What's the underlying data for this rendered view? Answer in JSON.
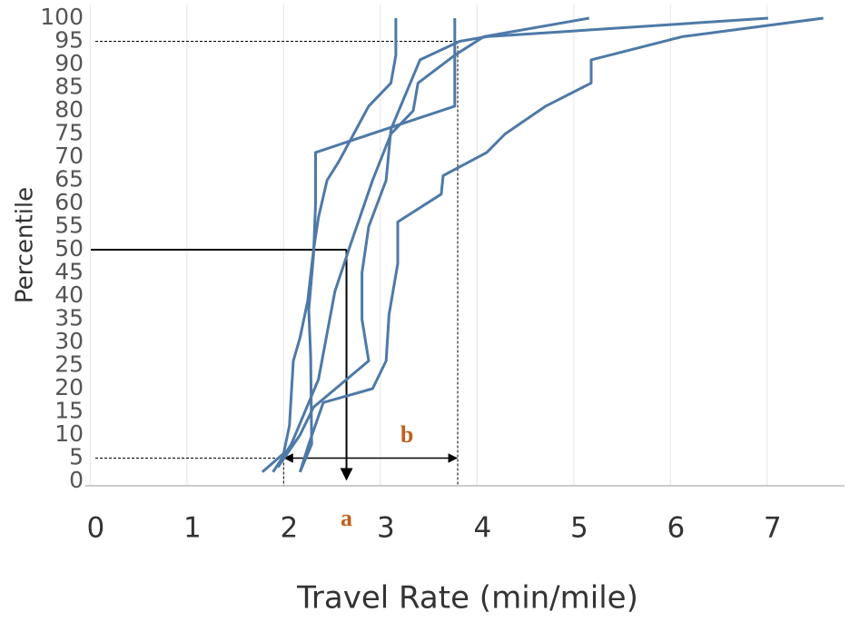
{
  "chart_data": {
    "type": "line",
    "x_label": "Travel Rate (min/mile)",
    "y_label": "Percentile",
    "color": "#4e79a7",
    "grid": true,
    "xlim": [
      -0.05,
      7.8
    ],
    "ylim": [
      0,
      100
    ],
    "xticks": [
      0,
      1,
      2,
      3,
      4,
      5,
      6,
      7
    ],
    "yticks": [
      0,
      5,
      10,
      15,
      20,
      25,
      30,
      35,
      40,
      45,
      50,
      55,
      60,
      65,
      70,
      75,
      80,
      85,
      90,
      95,
      100
    ],
    "series": [
      {
        "x": [
          1.78,
          2.0,
          2.06,
          2.1,
          2.17,
          2.25,
          2.31,
          2.36,
          2.45,
          2.57,
          2.88,
          3.11,
          3.16,
          3.16
        ],
        "values": [
          2,
          6,
          12,
          26,
          31,
          39,
          50,
          57,
          65,
          69,
          81,
          86,
          92,
          100
        ]
      },
      {
        "x": [
          2.17,
          2.29,
          2.28,
          2.26,
          2.31,
          2.33,
          2.33,
          3.77,
          3.77
        ],
        "values": [
          2,
          8,
          27,
          37,
          49,
          60,
          71,
          81,
          100
        ]
      },
      {
        "x": [
          1.89,
          2.08,
          2.36,
          2.53,
          2.69,
          2.92,
          3.11,
          3.34,
          3.39,
          3.77,
          4.07,
          5.16
        ],
        "values": [
          2,
          8,
          22,
          41,
          51,
          65,
          75,
          80,
          86,
          92,
          96,
          100
        ]
      },
      {
        "x": [
          1.94,
          2.17,
          2.31,
          2.88,
          2.81,
          2.81,
          2.88,
          3.06,
          3.11,
          3.41,
          3.82,
          4.1,
          7.01
        ],
        "values": [
          3,
          10,
          16,
          26,
          35,
          45,
          55,
          65,
          76,
          91,
          95,
          96,
          100
        ]
      },
      {
        "x": [
          2.17,
          2.26,
          2.41,
          2.92,
          3.06,
          3.09,
          3.18,
          3.18,
          3.63,
          3.65,
          4.1,
          4.29,
          4.71,
          5.18,
          5.18,
          6.12,
          7.58
        ],
        "values": [
          2,
          8,
          17,
          20,
          26,
          36,
          47,
          56,
          62,
          66,
          71,
          75,
          81,
          86,
          91,
          96,
          100
        ]
      }
    ],
    "guides": {
      "p_high": 95,
      "p_low": 5,
      "p_median": 50,
      "x_high": 3.8,
      "x_low": 2.0,
      "x_median": 2.65
    },
    "annotations": {
      "a": "a",
      "b": "b"
    }
  }
}
